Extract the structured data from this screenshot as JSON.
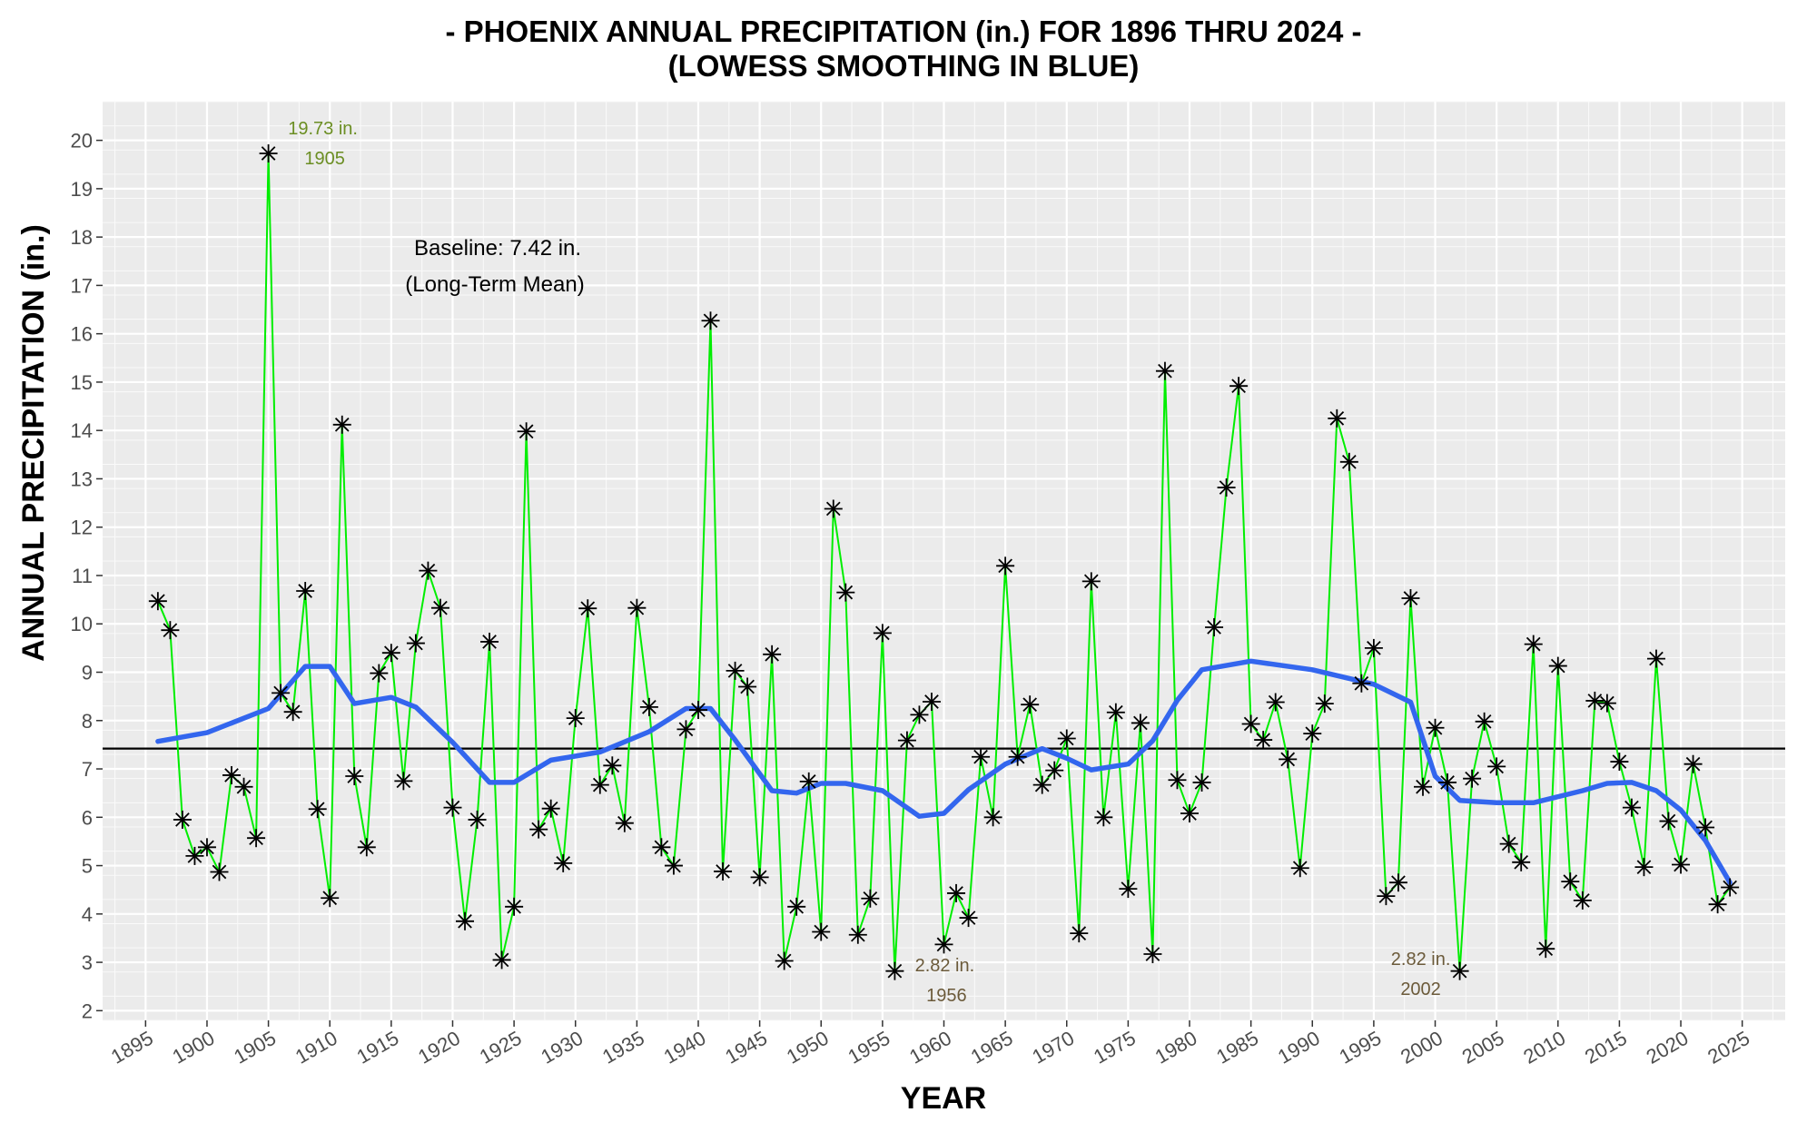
{
  "chart_data": {
    "type": "line",
    "title": "- PHOENIX ANNUAL PRECIPITATION (in.) FOR 1896 THRU 2024 -",
    "subtitle": "(LOWESS SMOOTHING IN BLUE)",
    "xlabel": "YEAR",
    "ylabel": "ANNUAL PRECIPITATION (in.)",
    "xlim": [
      1891.5,
      2028.5
    ],
    "ylim": [
      1.8,
      20.8
    ],
    "x_ticks": [
      1895,
      1900,
      1905,
      1910,
      1915,
      1920,
      1925,
      1930,
      1935,
      1940,
      1945,
      1950,
      1955,
      1960,
      1965,
      1970,
      1975,
      1980,
      1985,
      1990,
      1995,
      2000,
      2005,
      2010,
      2015,
      2020,
      2025
    ],
    "y_ticks": [
      2,
      3,
      4,
      5,
      6,
      7,
      8,
      9,
      10,
      11,
      12,
      13,
      14,
      15,
      16,
      17,
      18,
      19,
      20
    ],
    "grid": true,
    "colors": {
      "data_line": "#00ee00",
      "lowess": "#3366ee",
      "baseline": "#000000",
      "panel_bg": "#ebebeb",
      "max_label": "#6b8e23",
      "min_label": "#6b5a3a"
    },
    "series": [
      {
        "name": "Annual precipitation",
        "x": [
          1896,
          1897,
          1898,
          1899,
          1900,
          1901,
          1902,
          1903,
          1904,
          1905,
          1906,
          1907,
          1908,
          1909,
          1910,
          1911,
          1912,
          1913,
          1914,
          1915,
          1916,
          1917,
          1918,
          1919,
          1920,
          1921,
          1922,
          1923,
          1924,
          1925,
          1926,
          1927,
          1928,
          1929,
          1930,
          1931,
          1932,
          1933,
          1934,
          1935,
          1936,
          1937,
          1938,
          1939,
          1940,
          1941,
          1942,
          1943,
          1944,
          1945,
          1946,
          1947,
          1948,
          1949,
          1950,
          1951,
          1952,
          1953,
          1954,
          1955,
          1956,
          1957,
          1958,
          1959,
          1960,
          1961,
          1962,
          1963,
          1964,
          1965,
          1966,
          1967,
          1968,
          1969,
          1970,
          1971,
          1972,
          1973,
          1974,
          1975,
          1976,
          1977,
          1978,
          1979,
          1980,
          1981,
          1982,
          1983,
          1984,
          1985,
          1986,
          1987,
          1988,
          1989,
          1990,
          1991,
          1992,
          1993,
          1994,
          1995,
          1996,
          1997,
          1998,
          1999,
          2000,
          2001,
          2002,
          2003,
          2004,
          2005,
          2006,
          2007,
          2008,
          2009,
          2010,
          2011,
          2012,
          2013,
          2014,
          2015,
          2016,
          2017,
          2018,
          2019,
          2020,
          2021,
          2022,
          2023,
          2024
        ],
        "values": [
          10.47,
          9.87,
          5.95,
          5.2,
          5.38,
          4.87,
          6.87,
          6.63,
          5.57,
          19.73,
          8.57,
          8.18,
          10.68,
          6.17,
          4.33,
          14.12,
          6.85,
          5.38,
          8.98,
          9.4,
          6.75,
          9.6,
          11.1,
          10.33,
          6.2,
          3.85,
          5.95,
          9.63,
          3.05,
          4.15,
          13.98,
          5.75,
          6.18,
          5.05,
          8.05,
          10.32,
          6.67,
          7.07,
          5.88,
          10.33,
          8.28,
          5.38,
          5.0,
          7.82,
          8.22,
          16.27,
          4.88,
          9.03,
          8.7,
          4.76,
          9.37,
          3.03,
          4.15,
          6.74,
          3.63,
          12.38,
          10.65,
          3.57,
          4.32,
          9.81,
          2.82,
          7.59,
          8.12,
          8.39,
          3.37,
          4.43,
          3.92,
          7.25,
          6.0,
          11.2,
          7.25,
          8.33,
          6.67,
          6.97,
          7.63,
          3.6,
          10.88,
          6.0,
          8.17,
          4.52,
          7.95,
          3.17,
          15.23,
          6.77,
          6.08,
          6.72,
          9.93,
          12.82,
          14.92,
          7.93,
          7.6,
          8.38,
          7.2,
          4.95,
          7.73,
          8.35,
          14.25,
          13.35,
          8.77,
          9.5,
          4.37,
          4.65,
          10.53,
          6.63,
          7.85,
          6.72,
          2.82,
          6.8,
          7.98,
          7.05,
          5.45,
          5.07,
          9.58,
          3.28,
          9.13,
          4.67,
          4.28,
          8.41,
          8.36,
          7.15,
          6.2,
          4.97,
          9.28,
          5.92,
          5.02,
          7.1,
          5.79,
          4.2,
          4.55
        ]
      },
      {
        "name": "LOWESS smoothing",
        "x": [
          1896,
          1900,
          1905,
          1908,
          1910,
          1912,
          1915,
          1917,
          1920,
          1923,
          1925,
          1928,
          1932,
          1936,
          1939,
          1941,
          1943,
          1946,
          1948,
          1950,
          1952,
          1955,
          1958,
          1960,
          1962,
          1965,
          1968,
          1970,
          1972,
          1975,
          1977,
          1979,
          1981,
          1985,
          1990,
          1995,
          1998,
          2000,
          2002,
          2005,
          2008,
          2012,
          2014,
          2016,
          2018,
          2020,
          2022,
          2024
        ],
        "values": [
          7.57,
          7.75,
          8.25,
          9.12,
          9.12,
          8.35,
          8.48,
          8.28,
          7.55,
          6.72,
          6.72,
          7.18,
          7.35,
          7.77,
          8.25,
          8.25,
          7.6,
          6.55,
          6.5,
          6.7,
          6.7,
          6.55,
          6.02,
          6.08,
          6.57,
          7.1,
          7.42,
          7.22,
          6.98,
          7.1,
          7.58,
          8.42,
          9.05,
          9.23,
          9.05,
          8.75,
          8.38,
          6.85,
          6.35,
          6.3,
          6.3,
          6.55,
          6.7,
          6.72,
          6.55,
          6.15,
          5.52,
          4.65
        ]
      }
    ],
    "baseline": {
      "value": 7.42,
      "label_line1": "Baseline: 7.42 in.",
      "label_line2": "(Long-Term Mean)"
    },
    "annotations": [
      {
        "x": 1905,
        "value_text": "19.73 in.",
        "year_text": "1905",
        "kind": "max"
      },
      {
        "x": 1956,
        "value_text": "2.82 in.",
        "year_text": "1956",
        "kind": "min"
      },
      {
        "x": 2002,
        "value_text": "2.82 in.",
        "year_text": "2002",
        "kind": "min"
      }
    ]
  }
}
